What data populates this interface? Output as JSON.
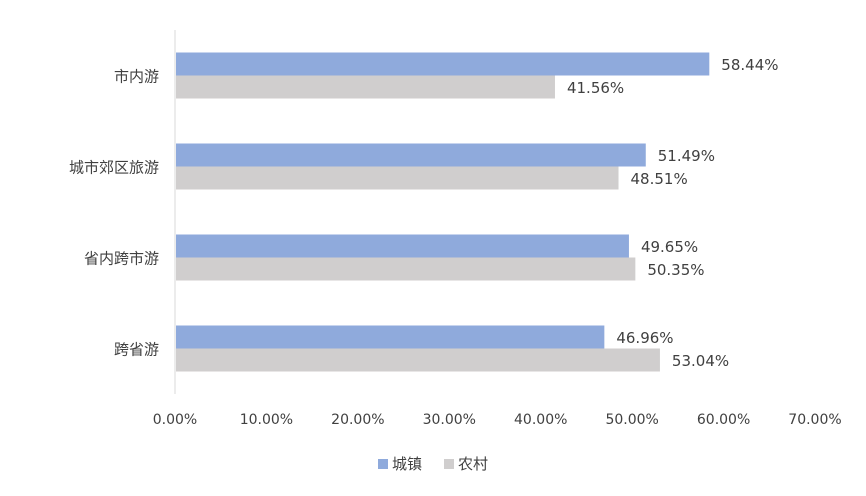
{
  "chart_data": {
    "type": "bar",
    "orientation": "horizontal",
    "categories": [
      "市内游",
      "城市郊区旅游",
      "省内跨市游",
      "跨省游"
    ],
    "series": [
      {
        "name": "城镇",
        "values": [
          58.44,
          51.49,
          49.65,
          46.96
        ],
        "labels": [
          "58.44%",
          "51.49%",
          "49.65%",
          "46.96%"
        ],
        "color": "#8faadc"
      },
      {
        "name": "农村",
        "values": [
          41.56,
          48.51,
          50.35,
          53.04
        ],
        "labels": [
          "41.56%",
          "48.51%",
          "50.35%",
          "53.04%"
        ],
        "color": "#d0cece"
      }
    ],
    "xlim": [
      0,
      70
    ],
    "xticks": [
      "0.00%",
      "10.00%",
      "20.00%",
      "30.00%",
      "40.00%",
      "50.00%",
      "60.00%",
      "70.00%"
    ],
    "grid": false,
    "legend_position": "bottom"
  }
}
